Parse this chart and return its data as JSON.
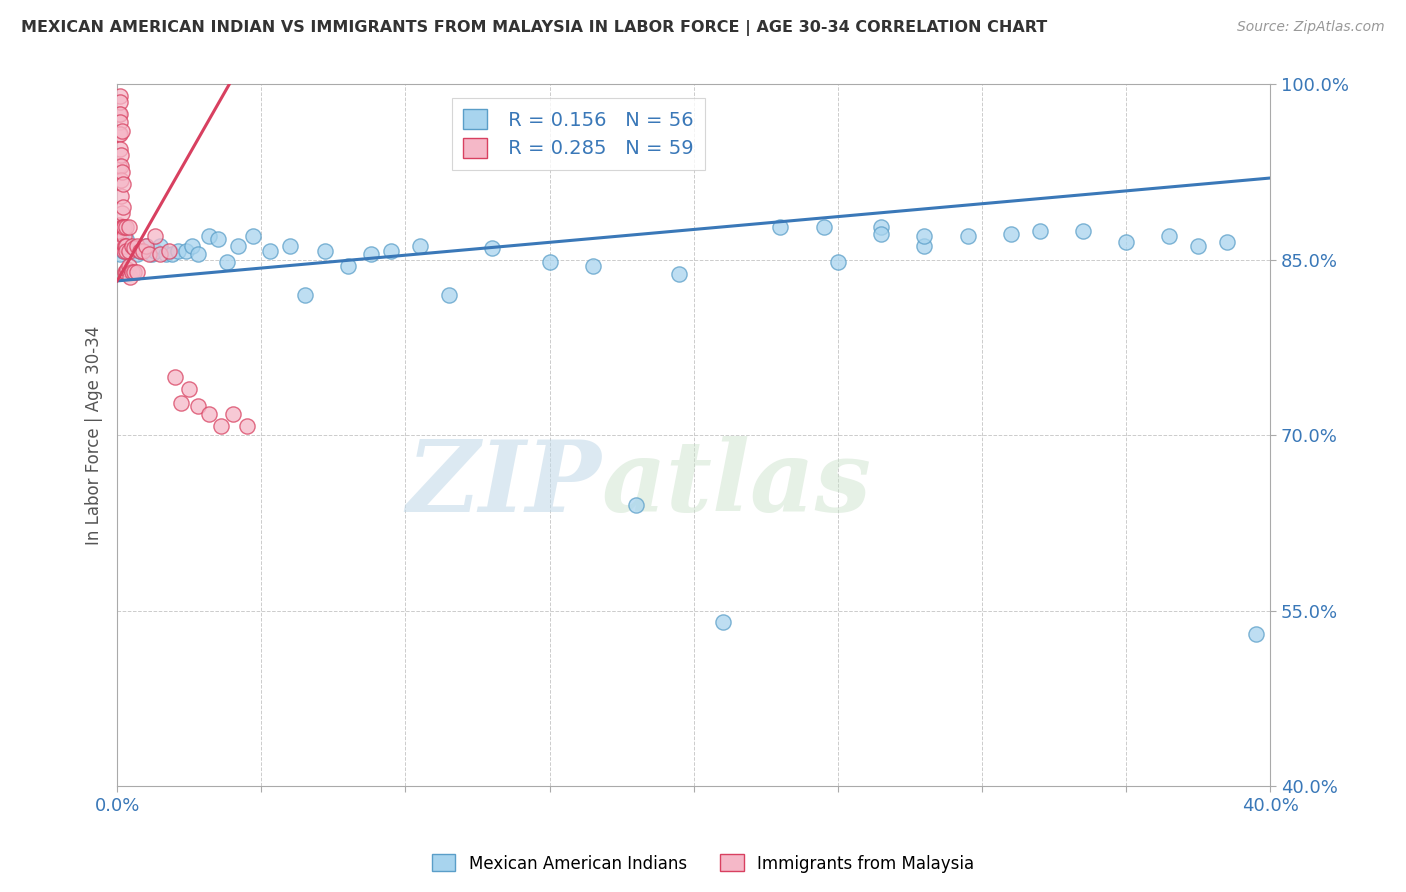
{
  "title": "MEXICAN AMERICAN INDIAN VS IMMIGRANTS FROM MALAYSIA IN LABOR FORCE | AGE 30-34 CORRELATION CHART",
  "source": "Source: ZipAtlas.com",
  "ylabel": "In Labor Force | Age 30-34",
  "xlim": [
    0.0,
    0.4
  ],
  "ylim": [
    0.4,
    1.0
  ],
  "blue_R": 0.156,
  "blue_N": 56,
  "pink_R": 0.285,
  "pink_N": 59,
  "blue_color": "#a8d4ee",
  "pink_color": "#f5b8c8",
  "blue_edge_color": "#5a9ec8",
  "pink_edge_color": "#d84060",
  "blue_line_color": "#3a78b8",
  "pink_line_color": "#d84060",
  "watermark_zip": "ZIP",
  "watermark_atlas": "atlas",
  "legend_label_blue": "Mexican American Indians",
  "legend_label_pink": "Immigrants from Malaysia",
  "blue_x": [
    0.001,
    0.001,
    0.002,
    0.002,
    0.003,
    0.004,
    0.005,
    0.006,
    0.007,
    0.008,
    0.01,
    0.012,
    0.013,
    0.015,
    0.017,
    0.019,
    0.021,
    0.024,
    0.026,
    0.028,
    0.032,
    0.035,
    0.038,
    0.042,
    0.047,
    0.053,
    0.06,
    0.065,
    0.072,
    0.08,
    0.088,
    0.095,
    0.105,
    0.115,
    0.13,
    0.15,
    0.165,
    0.18,
    0.195,
    0.21,
    0.23,
    0.25,
    0.265,
    0.28,
    0.295,
    0.31,
    0.32,
    0.335,
    0.35,
    0.365,
    0.375,
    0.385,
    0.395,
    0.28,
    0.265,
    0.245
  ],
  "blue_y": [
    0.87,
    0.855,
    0.875,
    0.858,
    0.868,
    0.862,
    0.858,
    0.86,
    0.855,
    0.858,
    0.862,
    0.855,
    0.858,
    0.862,
    0.855,
    0.855,
    0.858,
    0.858,
    0.862,
    0.855,
    0.87,
    0.868,
    0.848,
    0.862,
    0.87,
    0.858,
    0.862,
    0.82,
    0.858,
    0.845,
    0.855,
    0.858,
    0.862,
    0.82,
    0.86,
    0.848,
    0.845,
    0.64,
    0.838,
    0.54,
    0.878,
    0.848,
    0.878,
    0.862,
    0.87,
    0.872,
    0.875,
    0.875,
    0.865,
    0.87,
    0.862,
    0.865,
    0.53,
    0.87,
    0.872,
    0.878
  ],
  "pink_x": [
    0.0003,
    0.0004,
    0.0005,
    0.0006,
    0.0007,
    0.0008,
    0.0009,
    0.001,
    0.001,
    0.001,
    0.001,
    0.001,
    0.0012,
    0.0012,
    0.0013,
    0.0014,
    0.0015,
    0.0015,
    0.0016,
    0.0017,
    0.0018,
    0.002,
    0.002,
    0.002,
    0.0022,
    0.0023,
    0.0025,
    0.0026,
    0.0028,
    0.003,
    0.003,
    0.003,
    0.0032,
    0.0035,
    0.004,
    0.004,
    0.0042,
    0.0045,
    0.005,
    0.005,
    0.006,
    0.006,
    0.007,
    0.007,
    0.008,
    0.009,
    0.01,
    0.011,
    0.013,
    0.015,
    0.018,
    0.02,
    0.022,
    0.025,
    0.028,
    0.032,
    0.036,
    0.04,
    0.045
  ],
  "pink_y": [
    0.87,
    0.875,
    0.88,
    0.93,
    0.958,
    0.975,
    0.99,
    0.985,
    0.975,
    0.968,
    0.958,
    0.945,
    0.94,
    0.93,
    0.918,
    0.905,
    0.96,
    0.925,
    0.89,
    0.878,
    0.862,
    0.915,
    0.895,
    0.878,
    0.87,
    0.858,
    0.878,
    0.862,
    0.84,
    0.878,
    0.862,
    0.84,
    0.858,
    0.842,
    0.878,
    0.858,
    0.845,
    0.835,
    0.862,
    0.84,
    0.86,
    0.84,
    0.862,
    0.84,
    0.858,
    0.858,
    0.862,
    0.855,
    0.87,
    0.855,
    0.858,
    0.75,
    0.728,
    0.74,
    0.725,
    0.718,
    0.708,
    0.718,
    0.708
  ],
  "blue_trend_x": [
    0.0,
    0.4
  ],
  "blue_trend_y": [
    0.832,
    0.92
  ],
  "pink_trend_x": [
    0.0,
    0.04
  ],
  "pink_trend_y": [
    0.832,
    1.005
  ]
}
